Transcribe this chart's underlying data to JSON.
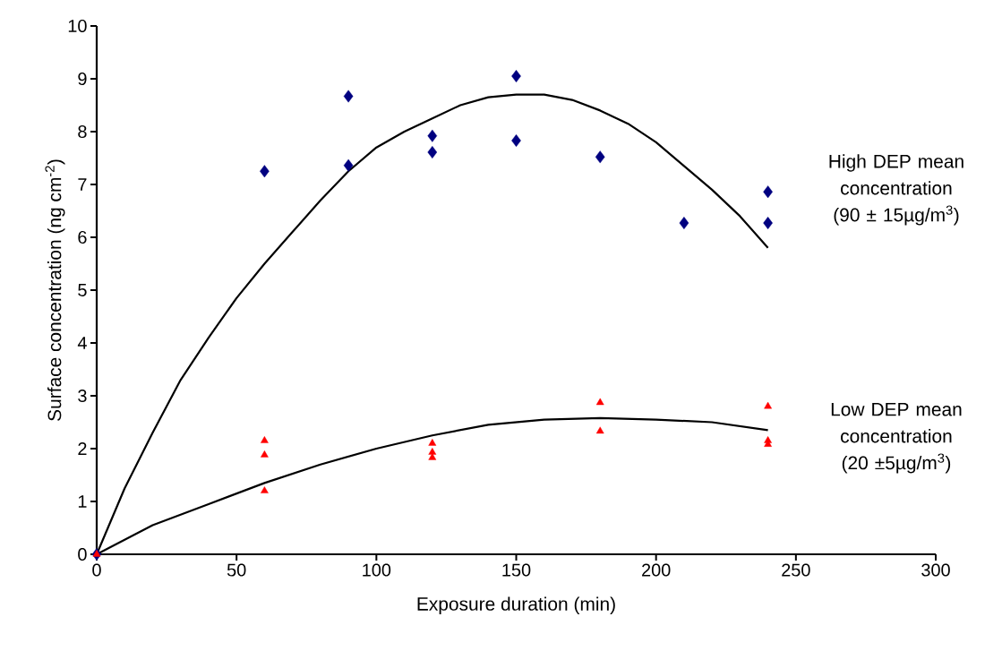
{
  "chart_data": {
    "type": "scatter",
    "xlabel": "Exposure duration (min)",
    "ylabel": "Surface concentration (ng cm$^{-2}$)",
    "xlim": [
      0,
      300
    ],
    "xticks": [
      0,
      50,
      100,
      150,
      200,
      250,
      300
    ],
    "ylim": [
      0,
      10
    ],
    "yticks": [
      0,
      1,
      2,
      3,
      4,
      5,
      6,
      7,
      8,
      9,
      10
    ],
    "grid": false,
    "legend": false,
    "series": [
      {
        "name": "High DEP mean concentration (90 ± 15µg/m$^{3}$)",
        "color": "#000080",
        "marker": "diamond",
        "x": [
          0,
          60,
          90,
          90,
          120,
          120,
          150,
          150,
          180,
          210,
          240,
          240
        ],
        "values": [
          0,
          7.25,
          8.67,
          7.36,
          7.92,
          7.61,
          9.05,
          7.83,
          7.52,
          6.27,
          6.86,
          6.27
        ]
      },
      {
        "name": "Low DEP mean concentration (20 ±5µg/m$^{3}$)",
        "color": "#ff0000",
        "marker": "triangle",
        "x": [
          0,
          60,
          60,
          60,
          120,
          120,
          120,
          180,
          180,
          240,
          240,
          240
        ],
        "values": [
          0,
          2.15,
          1.88,
          1.2,
          2.1,
          1.93,
          1.83,
          2.87,
          2.33,
          2.8,
          2.15,
          2.08
        ]
      },
      {
        "type": "line",
        "color": "#000000",
        "line_style": "solid",
        "x": [
          0,
          10,
          20,
          30,
          40,
          50,
          60,
          70,
          80,
          90,
          100,
          110,
          120,
          130,
          140,
          150,
          160,
          170,
          180,
          190,
          200,
          210,
          220,
          230,
          240
        ],
        "values": [
          0,
          1.25,
          2.3,
          3.3,
          4.1,
          4.85,
          5.5,
          6.1,
          6.7,
          7.25,
          7.7,
          8.0,
          8.25,
          8.5,
          8.65,
          8.7,
          8.7,
          8.6,
          8.4,
          8.15,
          7.8,
          7.35,
          6.9,
          6.4,
          5.8
        ]
      },
      {
        "type": "line",
        "color": "#000000",
        "line_style": "solid",
        "x": [
          0,
          20,
          40,
          60,
          80,
          100,
          120,
          140,
          160,
          180,
          200,
          220,
          240
        ],
        "values": [
          0,
          0.55,
          0.95,
          1.35,
          1.7,
          2.0,
          2.25,
          2.45,
          2.55,
          2.58,
          2.55,
          2.5,
          2.35
        ]
      }
    ]
  }
}
